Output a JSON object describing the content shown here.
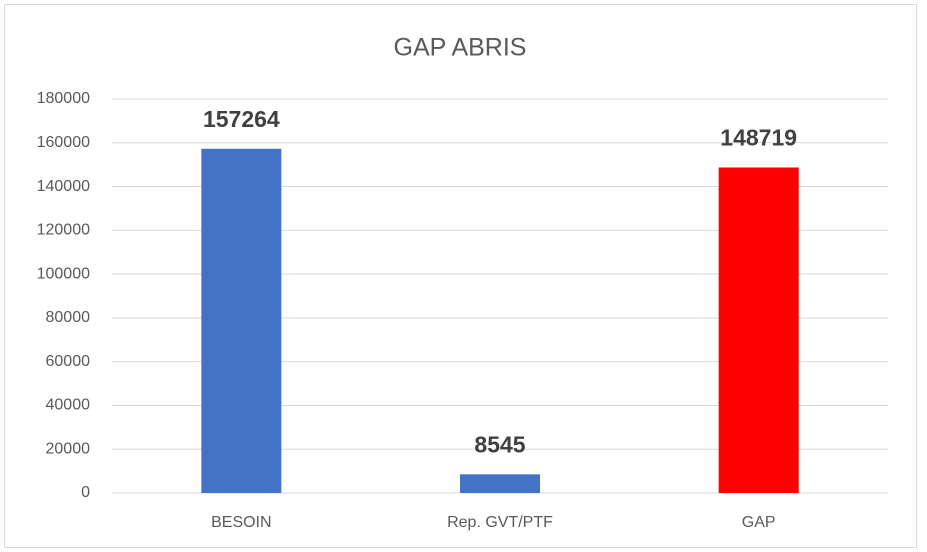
{
  "chart_data": {
    "type": "bar",
    "title": "GAP ABRIS",
    "categories": [
      "BESOIN",
      "Rep. GVT/PTF",
      "GAP"
    ],
    "values": [
      157264,
      8545,
      148719
    ],
    "colors": [
      "#4472c4",
      "#4472c4",
      "#ff0000"
    ],
    "ylim": [
      0,
      180000
    ],
    "yticks": [
      0,
      20000,
      40000,
      60000,
      80000,
      100000,
      120000,
      140000,
      160000,
      180000
    ],
    "grid": true
  }
}
